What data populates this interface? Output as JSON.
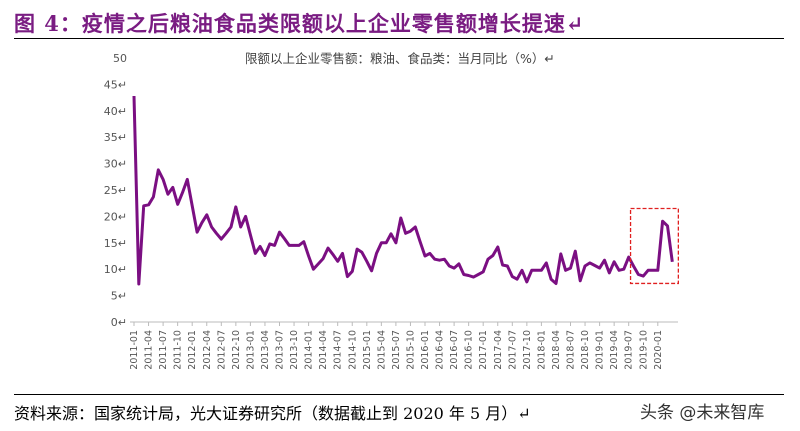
{
  "title": "图 4：疫情之后粮油食品类限额以上企业零售额增长提速↵",
  "footer": "资料来源：国家统计局，光大证券研究所（数据截止到 2020 年 5 月）↵",
  "watermark": "头条 @未来智库",
  "colors": {
    "title": "#7a1c82",
    "line": "#7b0f82",
    "highlight_box": "#e02020"
  },
  "chart_data": {
    "type": "line",
    "title": "限额以上企业零售额：粮油、食品类：当月同比（%）↵",
    "ylim": [
      0,
      50
    ],
    "yticks": [
      0,
      5,
      10,
      15,
      20,
      25,
      30,
      35,
      40,
      45,
      50
    ],
    "ytick_labels": [
      "0↵",
      "5↵",
      "10↵",
      "15↵",
      "20↵",
      "25↵",
      "30↵",
      "35↵",
      "40↵",
      "45↵",
      "50"
    ],
    "xtick_labels": [
      "2011-01",
      "2011-04",
      "2011-07",
      "2011-10",
      "2012-01",
      "2012-04",
      "2012-07",
      "2012-10",
      "2013-01",
      "2013-04",
      "2013-07",
      "2013-10",
      "2014-01",
      "2014-04",
      "2014-07",
      "2014-10",
      "2015-01",
      "2015-04",
      "2015-07",
      "2015-10",
      "2016-01",
      "2016-04",
      "2016-07",
      "2016-10",
      "2017-01",
      "2017-04",
      "2017-07",
      "2017-10",
      "2018-01",
      "2018-04",
      "2018-07",
      "2018-10",
      "2019-01",
      "2019-04",
      "2019-07",
      "2019-10",
      "2020-01"
    ],
    "grid": false,
    "highlight": {
      "from": "2019-08",
      "to": "2020-04",
      "style": "red dashed box"
    },
    "x": [
      "2011-01",
      "2011-02",
      "2011-03",
      "2011-04",
      "2011-05",
      "2011-06",
      "2011-07",
      "2011-08",
      "2011-09",
      "2011-10",
      "2011-11",
      "2011-12",
      "2012-01",
      "2012-02",
      "2012-03",
      "2012-04",
      "2012-05",
      "2012-06",
      "2012-07",
      "2012-08",
      "2012-09",
      "2012-10",
      "2012-11",
      "2012-12",
      "2013-01",
      "2013-02",
      "2013-03",
      "2013-04",
      "2013-05",
      "2013-06",
      "2013-07",
      "2013-08",
      "2013-09",
      "2013-10",
      "2013-11",
      "2013-12",
      "2014-01",
      "2014-02",
      "2014-03",
      "2014-04",
      "2014-05",
      "2014-06",
      "2014-07",
      "2014-08",
      "2014-09",
      "2014-10",
      "2014-11",
      "2014-12",
      "2015-01",
      "2015-02",
      "2015-03",
      "2015-04",
      "2015-05",
      "2015-06",
      "2015-07",
      "2015-08",
      "2015-09",
      "2015-10",
      "2015-11",
      "2015-12",
      "2016-01",
      "2016-02",
      "2016-03",
      "2016-04",
      "2016-05",
      "2016-06",
      "2016-07",
      "2016-08",
      "2016-09",
      "2016-10",
      "2016-11",
      "2016-12",
      "2017-01",
      "2017-02",
      "2017-03",
      "2017-04",
      "2017-05",
      "2017-06",
      "2017-07",
      "2017-08",
      "2017-09",
      "2017-10",
      "2017-11",
      "2017-12",
      "2018-01",
      "2018-02",
      "2018-03",
      "2018-04",
      "2018-05",
      "2018-06",
      "2018-07",
      "2018-08",
      "2018-09",
      "2018-10",
      "2018-11",
      "2018-12",
      "2019-01",
      "2019-02",
      "2019-03",
      "2019-04",
      "2019-05",
      "2019-06",
      "2019-07",
      "2019-08",
      "2019-09",
      "2019-10",
      "2019-11",
      "2019-12",
      "2020-01",
      "2020-02",
      "2020-03",
      "2020-04"
    ],
    "values": [
      42.8,
      7.2,
      22,
      22.2,
      23.7,
      28.8,
      27,
      24.2,
      25.5,
      22.3,
      24.5,
      27,
      22,
      17,
      18.8,
      20.3,
      18,
      16.8,
      15.7,
      16.8,
      18,
      21.8,
      18,
      20,
      16.5,
      13,
      14.3,
      12.6,
      14.8,
      14.5,
      17,
      15.8,
      14.5,
      14.5,
      14.5,
      15.2,
      12.5,
      10,
      11,
      12,
      14,
      12.8,
      11.5,
      13,
      8.6,
      9.6,
      13.8,
      13.2,
      11.5,
      9.7,
      13,
      15,
      15,
      16.7,
      15,
      19.7,
      16.8,
      17.2,
      18,
      15.2,
      12.5,
      13,
      11.9,
      11.7,
      11.9,
      10.6,
      10.2,
      11,
      9,
      8.8,
      8.5,
      9,
      9.5,
      11.9,
      12.6,
      14.2,
      10.8,
      10.6,
      8.6,
      8.1,
      9.8,
      7.6,
      9.8,
      9.8,
      9.8,
      11.2,
      8.1,
      7.3,
      12.9,
      9.8,
      10.2,
      13.4,
      7.8,
      10.6,
      11.2,
      10.7,
      10.2,
      11.7,
      9.3,
      11.4,
      9.8,
      10,
      12.3,
      10.6,
      9,
      8.7,
      9.8,
      9.8,
      9.8,
      19.1,
      18.2,
      11.4
    ]
  }
}
